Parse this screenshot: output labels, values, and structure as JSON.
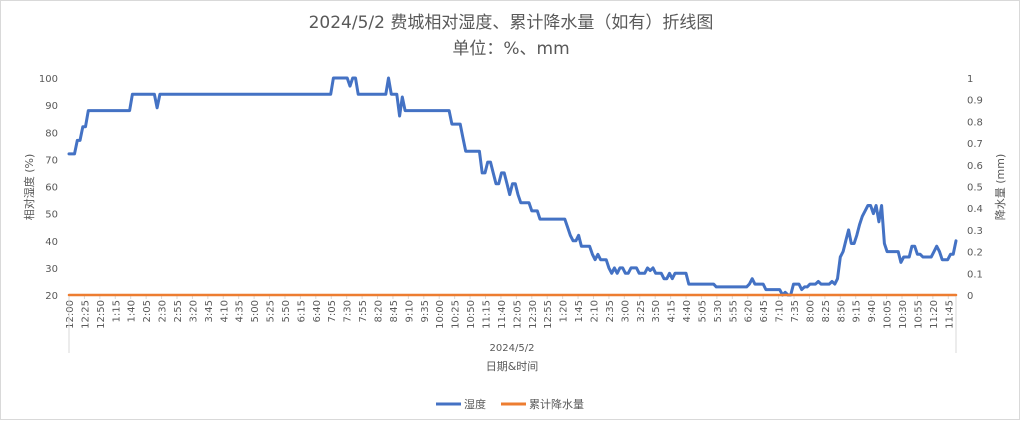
{
  "chart_data": {
    "type": "line",
    "title": "2024/5/2 费城相对湿度、累计降水量（如有）折线图",
    "subtitle": "单位：%、mm",
    "date_label": "2024/5/2",
    "xlabel": "日期&时间",
    "ylabel_left": "相对湿度 (%)",
    "ylabel_right": "降水量 (mm)",
    "ylim_left": [
      20,
      100
    ],
    "ylim_right": [
      0,
      1
    ],
    "y_ticks_left": [
      "20",
      "30",
      "40",
      "50",
      "60",
      "70",
      "80",
      "90",
      "100"
    ],
    "y_ticks_right": [
      "0",
      "0.1",
      "0.2",
      "0.3",
      "0.4",
      "0.5",
      "0.6",
      "0.7",
      "0.8",
      "0.9",
      "1"
    ],
    "x_ticks": [
      "12:00",
      "12:25",
      "12:50",
      "1:15",
      "1:40",
      "2:05",
      "2:30",
      "2:55",
      "3:20",
      "3:45",
      "4:10",
      "4:35",
      "5:00",
      "5:25",
      "5:50",
      "6:15",
      "6:40",
      "7:05",
      "7:30",
      "7:55",
      "8:20",
      "8:45",
      "9:10",
      "9:35",
      "10:00",
      "10:25",
      "10:50",
      "11:15",
      "11:40",
      "12:05",
      "12:30",
      "12:55",
      "1:20",
      "1:45",
      "2:10",
      "2:35",
      "3:00",
      "3:25",
      "3:50",
      "4:15",
      "4:40",
      "5:05",
      "5:30",
      "5:55",
      "6:20",
      "6:45",
      "7:10",
      "7:35",
      "8:00",
      "8:25",
      "8:50",
      "9:15",
      "9:40",
      "10:05",
      "10:30",
      "10:55",
      "11:20",
      "11:45"
    ],
    "grid": false,
    "legend_position": "bottom",
    "series": [
      {
        "name": "湿度",
        "axis": "left",
        "color": "#4472c4",
        "values": [
          72,
          72,
          72,
          77,
          77,
          82,
          82,
          88,
          88,
          88,
          88,
          88,
          88,
          88,
          88,
          88,
          88,
          88,
          88,
          88,
          88,
          88,
          88,
          94,
          94,
          94,
          94,
          94,
          94,
          94,
          94,
          94,
          89,
          94,
          94,
          94,
          94,
          94,
          94,
          94,
          94,
          94,
          94,
          94,
          94,
          94,
          94,
          94,
          94,
          94,
          94,
          94,
          94,
          94,
          94,
          94,
          94,
          94,
          94,
          94,
          94,
          94,
          94,
          94,
          94,
          94,
          94,
          94,
          94,
          94,
          94,
          94,
          94,
          94,
          94,
          94,
          94,
          94,
          94,
          94,
          94,
          94,
          94,
          94,
          94,
          94,
          94,
          94,
          94,
          94,
          94,
          94,
          94,
          94,
          94,
          94,
          100,
          100,
          100,
          100,
          100,
          100,
          97,
          100,
          100,
          94,
          94,
          94,
          94,
          94,
          94,
          94,
          94,
          94,
          94,
          94,
          100,
          94,
          94,
          94,
          86,
          93,
          88,
          88,
          88,
          88,
          88,
          88,
          88,
          88,
          88,
          88,
          88,
          88,
          88,
          88,
          88,
          88,
          88,
          83,
          83,
          83,
          83,
          78,
          73,
          73,
          73,
          73,
          73,
          73,
          65,
          65,
          69,
          69,
          65,
          61,
          61,
          65,
          65,
          61,
          57,
          61,
          61,
          57,
          54,
          54,
          54,
          54,
          51,
          51,
          51,
          48,
          48,
          48,
          48,
          48,
          48,
          48,
          48,
          48,
          48,
          45,
          42,
          40,
          40,
          42,
          38,
          38,
          38,
          38,
          35,
          33,
          35,
          33,
          33,
          33,
          30,
          28,
          30,
          28,
          30,
          30,
          28,
          28,
          30,
          30,
          30,
          28,
          28,
          28,
          30,
          29,
          30,
          28,
          28,
          28,
          26,
          26,
          28,
          26,
          28,
          28,
          28,
          28,
          28,
          24,
          24,
          24,
          24,
          24,
          24,
          24,
          24,
          24,
          24,
          23,
          23,
          23,
          23,
          23,
          23,
          23,
          23,
          23,
          23,
          23,
          23,
          24,
          26,
          24,
          24,
          24,
          24,
          22,
          22,
          22,
          22,
          22,
          22,
          20,
          21,
          20,
          20,
          24,
          24,
          24,
          22,
          23,
          23,
          24,
          24,
          24,
          25,
          24,
          24,
          24,
          24,
          25,
          24,
          26,
          34,
          36,
          40,
          44,
          39,
          39,
          42,
          46,
          49,
          51,
          53,
          53,
          50,
          53,
          47,
          53,
          39,
          36,
          36,
          36,
          36,
          36,
          32,
          34,
          34,
          34,
          38,
          38,
          35,
          35,
          34,
          34,
          34,
          34,
          36,
          38,
          36,
          33,
          33,
          33,
          35,
          35,
          40
        ]
      },
      {
        "name": "累计降水量",
        "axis": "right",
        "color": "#ed7d31",
        "values": [
          0,
          0
        ]
      }
    ]
  }
}
